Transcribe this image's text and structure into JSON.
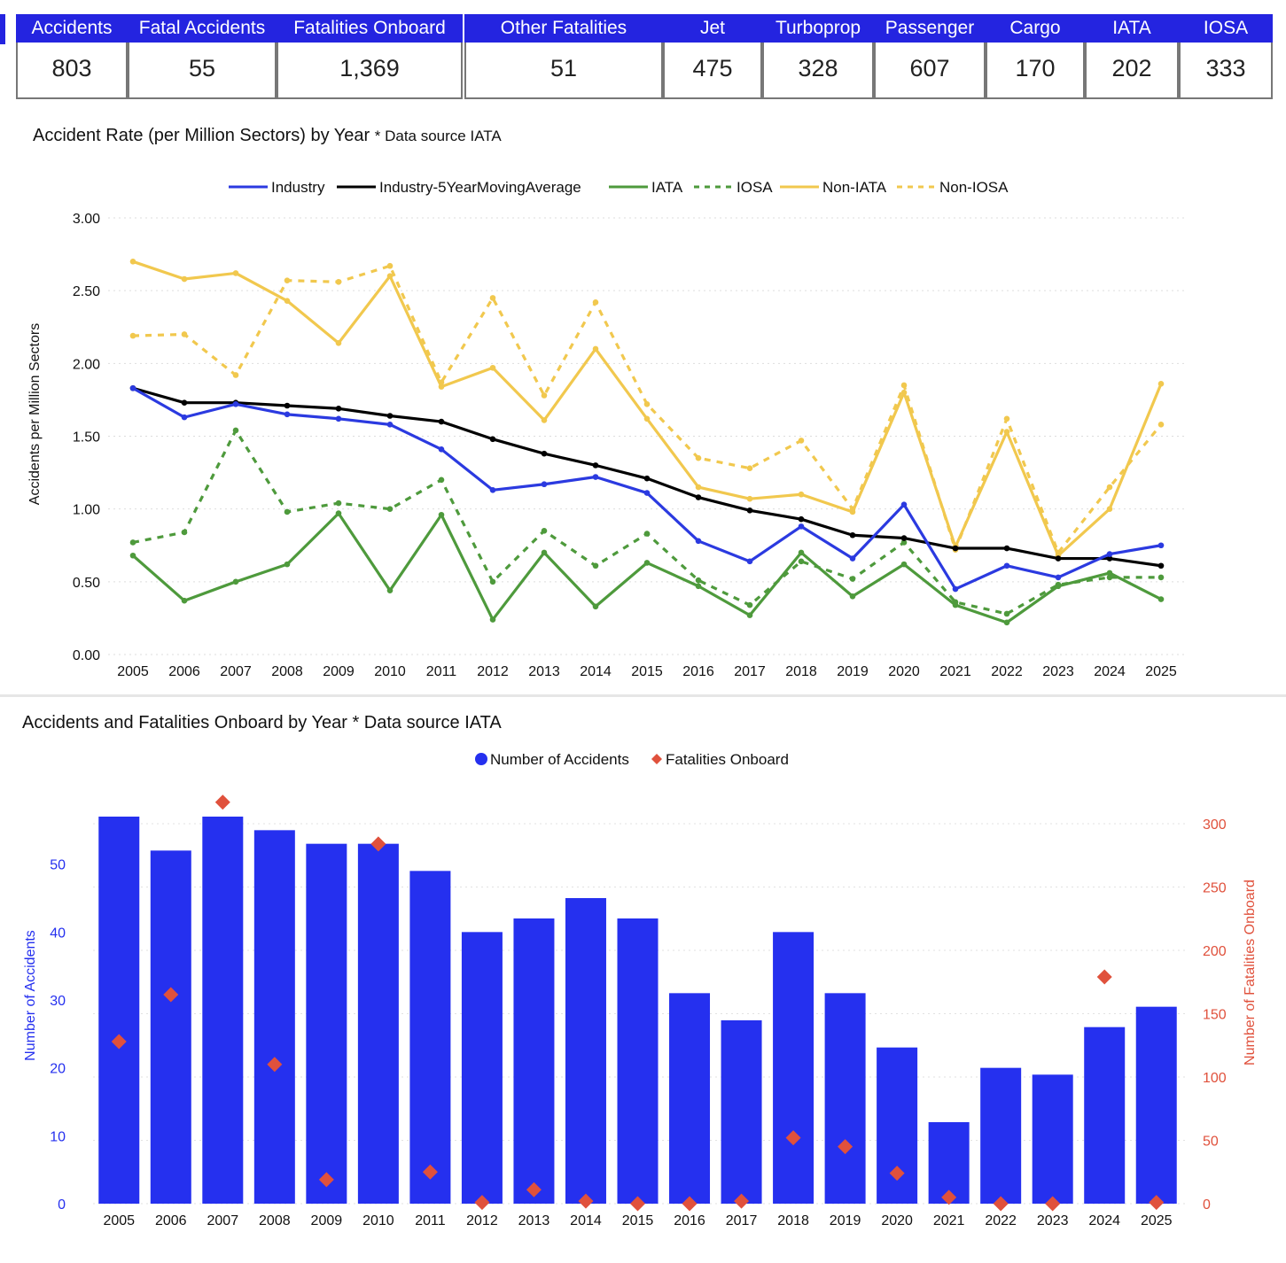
{
  "kpis": [
    {
      "label": "Accidents",
      "value": "803"
    },
    {
      "label": "Fatal Accidents",
      "value": "55"
    },
    {
      "label": "Fatalities Onboard",
      "value": "1,369"
    },
    {
      "label": "Other Fatalities",
      "value": "51"
    },
    {
      "label": "Jet",
      "value": "475"
    },
    {
      "label": "Turboprop",
      "value": "328"
    },
    {
      "label": "Passenger",
      "value": "607"
    },
    {
      "label": "Cargo",
      "value": "170"
    },
    {
      "label": "IATA",
      "value": "202"
    },
    {
      "label": "IOSA",
      "value": "333"
    }
  ],
  "colors": {
    "header_bg": "#2424e0",
    "industry": "#2b3ae0",
    "moving_average": "#000000",
    "iata": "#4e9a3c",
    "non_iata": "#f1c84e",
    "bars": "#2530ef",
    "fatalities": "#e0513c"
  },
  "chart_data": [
    {
      "type": "line",
      "title": "Accident Rate (per Million Sectors) by Year",
      "title_note": "* Data source IATA",
      "ylabel": "Accidents per Million Sectors",
      "xlabel": "",
      "ylim": [
        0,
        3
      ],
      "yticks": [
        "0.00",
        "0.50",
        "1.00",
        "1.50",
        "2.00",
        "2.50",
        "3.00"
      ],
      "grid": true,
      "legend_position": "top",
      "x": [
        "2005",
        "2006",
        "2007",
        "2008",
        "2009",
        "2010",
        "2011",
        "2012",
        "2013",
        "2014",
        "2015",
        "2016",
        "2017",
        "2018",
        "2019",
        "2020",
        "2021",
        "2022",
        "2023",
        "2024",
        "2025"
      ],
      "series": [
        {
          "name": "Industry",
          "style": "solid",
          "color": "#2b3ae0",
          "values": [
            1.83,
            1.63,
            1.72,
            1.65,
            1.62,
            1.58,
            1.41,
            1.13,
            1.17,
            1.22,
            1.11,
            0.78,
            0.64,
            0.88,
            0.66,
            1.03,
            0.45,
            0.61,
            0.53,
            0.69,
            0.75
          ]
        },
        {
          "name": "Industry-5YearMovingAverage",
          "style": "solid",
          "color": "#000000",
          "values": [
            1.83,
            1.73,
            1.73,
            1.71,
            1.69,
            1.64,
            1.6,
            1.48,
            1.38,
            1.3,
            1.21,
            1.08,
            0.99,
            0.93,
            0.82,
            0.8,
            0.73,
            0.73,
            0.66,
            0.66,
            0.61
          ]
        },
        {
          "name": "IATA",
          "style": "solid",
          "color": "#4e9a3c",
          "values": [
            0.68,
            0.37,
            0.5,
            0.62,
            0.97,
            0.44,
            0.96,
            0.24,
            0.7,
            0.33,
            0.63,
            0.47,
            0.27,
            0.7,
            0.4,
            0.62,
            0.34,
            0.22,
            0.47,
            0.56,
            0.38
          ]
        },
        {
          "name": "IOSA",
          "style": "dashed",
          "color": "#4e9a3c",
          "values": [
            0.77,
            0.84,
            1.54,
            0.98,
            1.04,
            1.0,
            1.2,
            0.5,
            0.85,
            0.61,
            0.83,
            0.51,
            0.34,
            0.64,
            0.52,
            0.77,
            0.36,
            0.28,
            0.48,
            0.53,
            0.53
          ]
        },
        {
          "name": "Non-IATA",
          "style": "solid",
          "color": "#f1c84e",
          "values": [
            2.7,
            2.58,
            2.62,
            2.43,
            2.14,
            2.6,
            1.84,
            1.97,
            1.61,
            2.1,
            1.62,
            1.15,
            1.07,
            1.1,
            0.98,
            1.8,
            0.74,
            1.53,
            0.68,
            1.0,
            1.86
          ]
        },
        {
          "name": "Non-IOSA",
          "style": "dashed",
          "color": "#f1c84e",
          "values": [
            2.19,
            2.2,
            1.92,
            2.57,
            2.56,
            2.67,
            1.87,
            2.45,
            1.78,
            2.42,
            1.72,
            1.35,
            1.28,
            1.47,
            1.0,
            1.85,
            0.72,
            1.62,
            0.7,
            1.15,
            1.58
          ]
        }
      ]
    },
    {
      "type": "bar",
      "title": "Accidents and Fatalities Onboard by Year",
      "title_note": "* Data source IATA",
      "legend_position": "top",
      "categories": [
        "2005",
        "2006",
        "2007",
        "2008",
        "2009",
        "2010",
        "2011",
        "2012",
        "2013",
        "2014",
        "2015",
        "2016",
        "2017",
        "2018",
        "2019",
        "2020",
        "2021",
        "2022",
        "2023",
        "2024",
        "2025"
      ],
      "ylabel_left": "Number of Accidents",
      "ylabel_right": "Number of Fatalities Onboard",
      "ylim_left": [
        0,
        57
      ],
      "ylim_right": [
        0,
        330
      ],
      "yticks_left": [
        "0",
        "10",
        "20",
        "30",
        "40",
        "50"
      ],
      "yticks_right": [
        "0",
        "50",
        "100",
        "150",
        "200",
        "250",
        "300"
      ],
      "series": [
        {
          "name": "Number of Accidents",
          "type": "bar",
          "axis": "left",
          "values": [
            57,
            52,
            57,
            55,
            53,
            53,
            49,
            40,
            42,
            45,
            42,
            31,
            27,
            40,
            31,
            23,
            12,
            20,
            19,
            26,
            29
          ]
        },
        {
          "name": "Fatalities Onboard",
          "type": "scatter",
          "marker": "diamond",
          "axis": "right",
          "values": [
            128,
            165,
            317,
            110,
            19,
            284,
            25,
            1,
            11,
            2,
            0,
            0,
            2,
            52,
            45,
            24,
            5,
            0,
            0,
            179,
            1
          ]
        }
      ]
    }
  ]
}
